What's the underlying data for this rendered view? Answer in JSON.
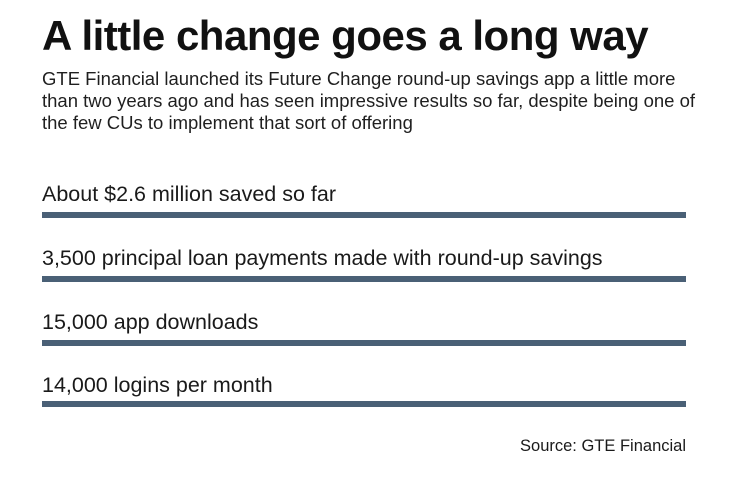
{
  "chart_data": {
    "type": "table",
    "title": "A little change goes a long way",
    "subtitle": "GTE Financial launched its Future Change round-up savings app a little more than two years ago and has seen impressive results so far, despite being one of the few CUs to implement that sort of offering",
    "stats": [
      {
        "label": "About $2.6 million saved so far",
        "value": 2600000,
        "bar_fraction": 1.0
      },
      {
        "label": "3,500 principal loan payments made with round-up savings",
        "value": 3500,
        "bar_fraction": 1.0
      },
      {
        "label": "15,000 app downloads",
        "value": 15000,
        "bar_fraction": 1.0
      },
      {
        "label": "14,000 logins per month",
        "value": 14000,
        "bar_fraction": 1.0
      }
    ],
    "source": "Source: GTE Financial"
  },
  "colors": {
    "bar": "#4a6076",
    "text": "#1a1a1a"
  }
}
